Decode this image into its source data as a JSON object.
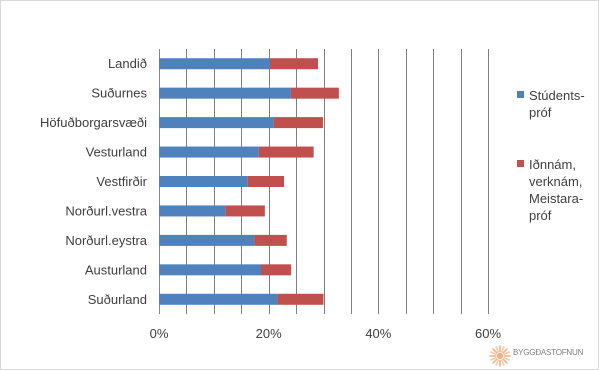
{
  "chart_data": {
    "type": "bar",
    "orientation": "horizontal",
    "stacked": true,
    "categories": [
      "Landið",
      "Suðurnes",
      "Höfuðborgarsvæði",
      "Vesturland",
      "Vestfirðir",
      "Norðurl.vestra",
      "Norðurl.eystra",
      "Austurland",
      "Suðurland"
    ],
    "series": [
      {
        "name": "Stúdents-\npróf",
        "color": "#4f81bd",
        "values": [
          20.2,
          24.0,
          20.9,
          18.2,
          16.1,
          12.1,
          17.4,
          18.6,
          21.6
        ]
      },
      {
        "name": "Iðnnám,\nverknám,\nMeistara-\npróf",
        "color": "#c0504d",
        "values": [
          8.8,
          8.8,
          9.0,
          10.0,
          6.7,
          7.2,
          5.9,
          5.5,
          8.4
        ]
      }
    ],
    "xlim": [
      0,
      60
    ],
    "xticks": [
      "0%",
      "20%",
      "40%",
      "60%"
    ],
    "title": "",
    "xlabel": "",
    "ylabel": "",
    "grid": "vertical",
    "legend_position": "right"
  },
  "logo": {
    "text": "BYGGÐASTOFNUN"
  }
}
